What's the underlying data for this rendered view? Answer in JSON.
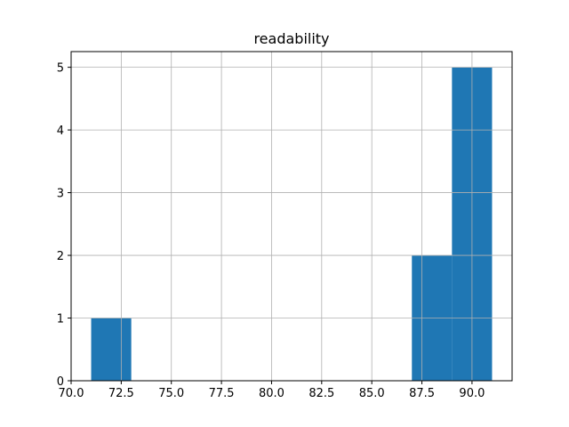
{
  "chart_data": {
    "type": "bar",
    "title": "readability",
    "xlabel": "",
    "ylabel": "",
    "xlim": [
      70.0,
      92.0
    ],
    "ylim": [
      0,
      5.25
    ],
    "grid": true,
    "bar_color": "#1f77b4",
    "bins": [
      {
        "x0": 71.0,
        "x1": 73.0,
        "count": 1
      },
      {
        "x0": 87.0,
        "x1": 89.0,
        "count": 2
      },
      {
        "x0": 89.0,
        "x1": 91.0,
        "count": 5
      }
    ],
    "x_ticks": [
      {
        "value": 70.0,
        "label": "70.0"
      },
      {
        "value": 72.5,
        "label": "72.5"
      },
      {
        "value": 75.0,
        "label": "75.0"
      },
      {
        "value": 77.5,
        "label": "77.5"
      },
      {
        "value": 80.0,
        "label": "80.0"
      },
      {
        "value": 82.5,
        "label": "82.5"
      },
      {
        "value": 85.0,
        "label": "85.0"
      },
      {
        "value": 87.5,
        "label": "87.5"
      },
      {
        "value": 90.0,
        "label": "90.0"
      }
    ],
    "y_ticks": [
      {
        "value": 0,
        "label": "0"
      },
      {
        "value": 1,
        "label": "1"
      },
      {
        "value": 2,
        "label": "2"
      },
      {
        "value": 3,
        "label": "3"
      },
      {
        "value": 4,
        "label": "4"
      },
      {
        "value": 5,
        "label": "5"
      }
    ]
  }
}
